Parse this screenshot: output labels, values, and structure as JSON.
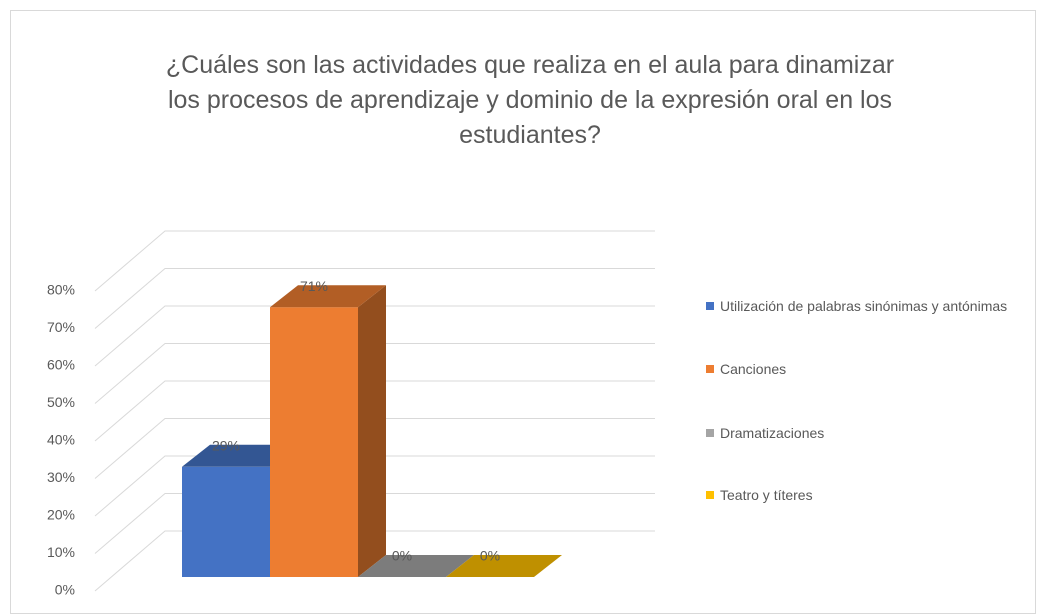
{
  "chart_data": {
    "type": "bar3d",
    "title": "¿Cuáles son las actividades que realiza en el aula para dinamizar los procesos de aprendizaje y dominio de la expresión oral en los estudiantes?",
    "series": [
      {
        "name": "Utilización de palabras sinónimas y antónimas",
        "color": "#4472c4",
        "values": [
          29
        ],
        "value_labels": [
          "29%"
        ]
      },
      {
        "name": "Canciones",
        "color": "#ed7d31",
        "values": [
          71
        ],
        "value_labels": [
          "71%"
        ]
      },
      {
        "name": "Dramatizaciones",
        "color": "#a5a5a5",
        "values": [
          0
        ],
        "value_labels": [
          "0%"
        ]
      },
      {
        "name": "Teatro y títeres",
        "color": "#ffc000",
        "values": [
          0
        ],
        "value_labels": [
          "0%"
        ]
      }
    ],
    "ylim": [
      0,
      80
    ],
    "yticks": [
      {
        "value": 0,
        "label": "0%"
      },
      {
        "value": 10,
        "label": "10%"
      },
      {
        "value": 20,
        "label": "20%"
      },
      {
        "value": 30,
        "label": "30%"
      },
      {
        "value": 40,
        "label": "40%"
      },
      {
        "value": 50,
        "label": "50%"
      },
      {
        "value": 60,
        "label": "60%"
      },
      {
        "value": 70,
        "label": "70%"
      },
      {
        "value": 80,
        "label": "80%"
      }
    ],
    "grid": true,
    "legend": "right"
  }
}
